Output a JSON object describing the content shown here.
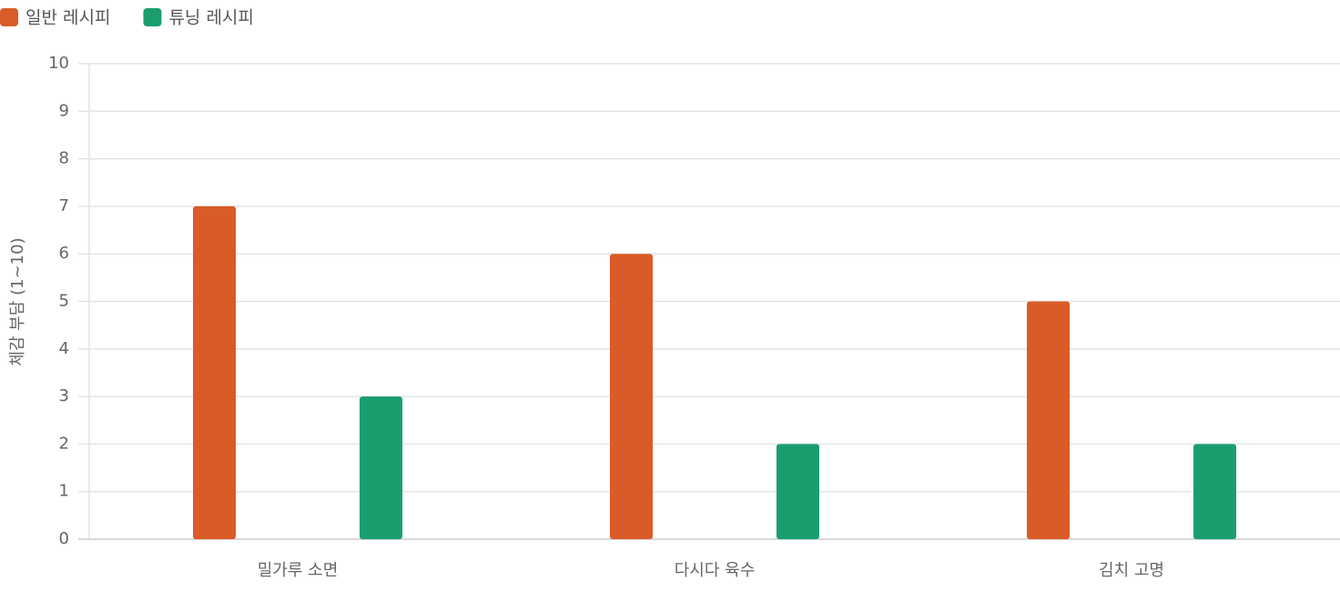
{
  "chart_data": {
    "type": "bar",
    "y_label": "체감 부담 (1~10)",
    "categories": [
      "밀가루 소면",
      "다시다 육수",
      "김치 고명"
    ],
    "series": [
      {
        "name": "일반 레시피",
        "color": "#d95b27",
        "values": [
          7,
          6,
          5
        ]
      },
      {
        "name": "튜닝 레시피",
        "color": "#1a9e6e",
        "values": [
          3,
          2,
          2
        ]
      }
    ],
    "ylim": [
      0,
      10
    ],
    "yticks": [
      0,
      1,
      2,
      3,
      4,
      5,
      6,
      7,
      8,
      9,
      10
    ],
    "grid": true,
    "legend": "top-left"
  }
}
